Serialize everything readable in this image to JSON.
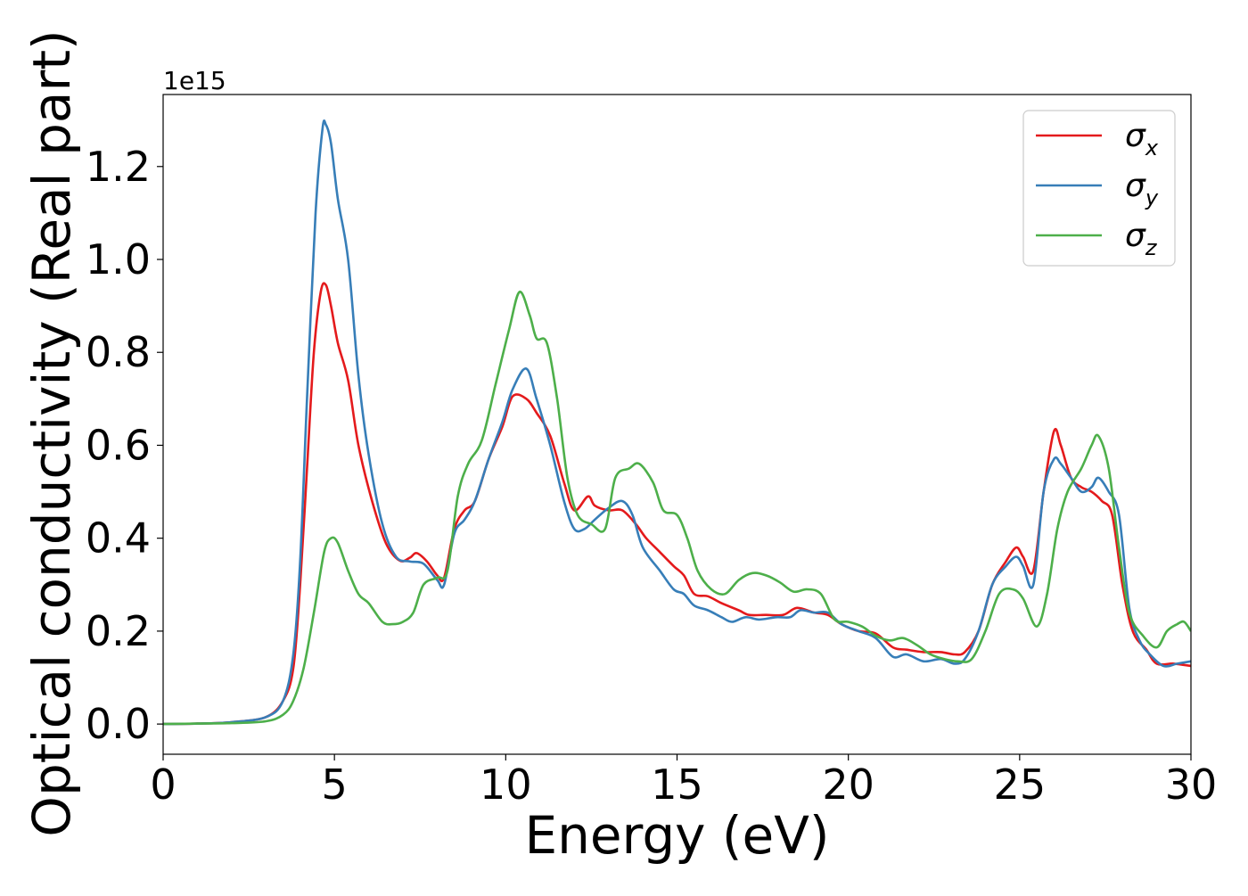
{
  "chart_data": {
    "type": "line",
    "title": "",
    "xlabel": "Energy (eV)",
    "ylabel": "Optical conductivity (Real part)",
    "y_offset_label": "1e15",
    "xlim": [
      0,
      30
    ],
    "ylim": [
      -0.065,
      1.355
    ],
    "x_ticks": [
      0,
      5,
      10,
      15,
      20,
      25,
      30
    ],
    "y_ticks": [
      0.0,
      0.2,
      0.4,
      0.6,
      0.8,
      1.0,
      1.2
    ],
    "x_tick_labels": [
      "0",
      "5",
      "10",
      "15",
      "20",
      "25",
      "30"
    ],
    "y_tick_labels": [
      "0.0",
      "0.2",
      "0.4",
      "0.6",
      "0.8",
      "1.0",
      "1.2"
    ],
    "grid": false,
    "legend_position": "top-right",
    "legend": {
      "sigma_symbol": "σ",
      "entries": [
        {
          "subscript": "x",
          "color": "#e41a1c"
        },
        {
          "subscript": "y",
          "color": "#377eb8"
        },
        {
          "subscript": "z",
          "color": "#4daf4a"
        }
      ]
    },
    "series": [
      {
        "color": "#e41a1c",
        "points": [
          [
            0,
            0
          ],
          [
            1,
            0.001
          ],
          [
            2,
            0.004
          ],
          [
            3,
            0.015
          ],
          [
            3.5,
            0.05
          ],
          [
            3.8,
            0.12
          ],
          [
            4,
            0.3
          ],
          [
            4.2,
            0.55
          ],
          [
            4.4,
            0.8
          ],
          [
            4.6,
            0.93
          ],
          [
            4.75,
            0.945
          ],
          [
            4.9,
            0.9
          ],
          [
            5.1,
            0.82
          ],
          [
            5.4,
            0.74
          ],
          [
            5.7,
            0.6
          ],
          [
            6.1,
            0.48
          ],
          [
            6.5,
            0.39
          ],
          [
            6.9,
            0.352
          ],
          [
            7.2,
            0.358
          ],
          [
            7.4,
            0.368
          ],
          [
            7.7,
            0.35
          ],
          [
            8.0,
            0.32
          ],
          [
            8.2,
            0.315
          ],
          [
            8.5,
            0.42
          ],
          [
            8.8,
            0.46
          ],
          [
            9.1,
            0.48
          ],
          [
            9.5,
            0.57
          ],
          [
            9.9,
            0.64
          ],
          [
            10.2,
            0.705
          ],
          [
            10.6,
            0.7
          ],
          [
            10.9,
            0.67
          ],
          [
            11.3,
            0.62
          ],
          [
            11.7,
            0.52
          ],
          [
            12.0,
            0.46
          ],
          [
            12.4,
            0.49
          ],
          [
            12.6,
            0.47
          ],
          [
            13.0,
            0.46
          ],
          [
            13.4,
            0.46
          ],
          [
            13.8,
            0.43
          ],
          [
            14.1,
            0.4
          ],
          [
            14.5,
            0.37
          ],
          [
            14.9,
            0.34
          ],
          [
            15.2,
            0.32
          ],
          [
            15.5,
            0.28
          ],
          [
            15.9,
            0.275
          ],
          [
            16.3,
            0.26
          ],
          [
            16.8,
            0.245
          ],
          [
            17.1,
            0.235
          ],
          [
            17.6,
            0.235
          ],
          [
            18.1,
            0.235
          ],
          [
            18.5,
            0.25
          ],
          [
            19.0,
            0.24
          ],
          [
            19.4,
            0.235
          ],
          [
            19.8,
            0.215
          ],
          [
            20.3,
            0.2
          ],
          [
            20.8,
            0.195
          ],
          [
            21.3,
            0.165
          ],
          [
            21.7,
            0.16
          ],
          [
            22.2,
            0.155
          ],
          [
            22.7,
            0.155
          ],
          [
            23.1,
            0.15
          ],
          [
            23.4,
            0.155
          ],
          [
            23.8,
            0.2
          ],
          [
            24.2,
            0.3
          ],
          [
            24.6,
            0.35
          ],
          [
            24.9,
            0.38
          ],
          [
            25.1,
            0.36
          ],
          [
            25.4,
            0.33
          ],
          [
            25.7,
            0.5
          ],
          [
            26.0,
            0.63
          ],
          [
            26.2,
            0.6
          ],
          [
            26.5,
            0.53
          ],
          [
            26.8,
            0.51
          ],
          [
            27.1,
            0.5
          ],
          [
            27.4,
            0.48
          ],
          [
            27.7,
            0.45
          ],
          [
            28.0,
            0.3
          ],
          [
            28.3,
            0.2
          ],
          [
            28.7,
            0.16
          ],
          [
            29.0,
            0.13
          ],
          [
            29.5,
            0.13
          ],
          [
            30,
            0.125
          ]
        ]
      },
      {
        "color": "#377eb8",
        "points": [
          [
            0,
            0
          ],
          [
            1,
            0.001
          ],
          [
            2,
            0.004
          ],
          [
            3,
            0.015
          ],
          [
            3.5,
            0.05
          ],
          [
            3.8,
            0.15
          ],
          [
            4,
            0.35
          ],
          [
            4.2,
            0.7
          ],
          [
            4.45,
            1.1
          ],
          [
            4.65,
            1.28
          ],
          [
            4.75,
            1.29
          ],
          [
            4.9,
            1.25
          ],
          [
            5.1,
            1.13
          ],
          [
            5.4,
            1.0
          ],
          [
            5.7,
            0.75
          ],
          [
            6.0,
            0.58
          ],
          [
            6.4,
            0.43
          ],
          [
            6.8,
            0.36
          ],
          [
            7.2,
            0.35
          ],
          [
            7.6,
            0.345
          ],
          [
            8.0,
            0.31
          ],
          [
            8.2,
            0.3
          ],
          [
            8.5,
            0.41
          ],
          [
            8.8,
            0.44
          ],
          [
            9.1,
            0.48
          ],
          [
            9.5,
            0.57
          ],
          [
            9.9,
            0.65
          ],
          [
            10.2,
            0.72
          ],
          [
            10.6,
            0.765
          ],
          [
            10.9,
            0.7
          ],
          [
            11.3,
            0.6
          ],
          [
            11.7,
            0.48
          ],
          [
            12.0,
            0.42
          ],
          [
            12.3,
            0.42
          ],
          [
            12.6,
            0.44
          ],
          [
            13.0,
            0.465
          ],
          [
            13.4,
            0.48
          ],
          [
            13.7,
            0.45
          ],
          [
            14.0,
            0.38
          ],
          [
            14.5,
            0.33
          ],
          [
            14.9,
            0.29
          ],
          [
            15.2,
            0.28
          ],
          [
            15.5,
            0.255
          ],
          [
            15.9,
            0.245
          ],
          [
            16.3,
            0.23
          ],
          [
            16.6,
            0.22
          ],
          [
            17.0,
            0.23
          ],
          [
            17.4,
            0.225
          ],
          [
            17.9,
            0.23
          ],
          [
            18.3,
            0.23
          ],
          [
            18.6,
            0.245
          ],
          [
            19.0,
            0.24
          ],
          [
            19.4,
            0.24
          ],
          [
            19.8,
            0.215
          ],
          [
            20.3,
            0.2
          ],
          [
            20.8,
            0.185
          ],
          [
            21.3,
            0.145
          ],
          [
            21.7,
            0.15
          ],
          [
            22.2,
            0.135
          ],
          [
            22.7,
            0.14
          ],
          [
            23.1,
            0.13
          ],
          [
            23.4,
            0.14
          ],
          [
            23.8,
            0.2
          ],
          [
            24.2,
            0.3
          ],
          [
            24.6,
            0.34
          ],
          [
            24.9,
            0.36
          ],
          [
            25.1,
            0.34
          ],
          [
            25.4,
            0.3
          ],
          [
            25.7,
            0.5
          ],
          [
            26.0,
            0.57
          ],
          [
            26.2,
            0.56
          ],
          [
            26.5,
            0.53
          ],
          [
            26.8,
            0.5
          ],
          [
            27.1,
            0.51
          ],
          [
            27.3,
            0.53
          ],
          [
            27.6,
            0.5
          ],
          [
            27.9,
            0.45
          ],
          [
            28.2,
            0.25
          ],
          [
            28.5,
            0.18
          ],
          [
            28.8,
            0.15
          ],
          [
            29.2,
            0.125
          ],
          [
            29.6,
            0.13
          ],
          [
            30,
            0.135
          ]
        ]
      },
      {
        "color": "#4daf4a",
        "points": [
          [
            0,
            0
          ],
          [
            1,
            0.001
          ],
          [
            2,
            0.002
          ],
          [
            3,
            0.006
          ],
          [
            3.5,
            0.02
          ],
          [
            3.8,
            0.05
          ],
          [
            4.1,
            0.12
          ],
          [
            4.4,
            0.24
          ],
          [
            4.7,
            0.37
          ],
          [
            4.9,
            0.4
          ],
          [
            5.1,
            0.39
          ],
          [
            5.4,
            0.33
          ],
          [
            5.7,
            0.28
          ],
          [
            6.0,
            0.26
          ],
          [
            6.4,
            0.22
          ],
          [
            6.7,
            0.215
          ],
          [
            7.0,
            0.22
          ],
          [
            7.3,
            0.24
          ],
          [
            7.6,
            0.3
          ],
          [
            8.0,
            0.315
          ],
          [
            8.3,
            0.33
          ],
          [
            8.6,
            0.49
          ],
          [
            8.9,
            0.56
          ],
          [
            9.3,
            0.61
          ],
          [
            9.7,
            0.73
          ],
          [
            10.1,
            0.85
          ],
          [
            10.4,
            0.93
          ],
          [
            10.7,
            0.88
          ],
          [
            10.9,
            0.83
          ],
          [
            11.2,
            0.82
          ],
          [
            11.5,
            0.7
          ],
          [
            11.8,
            0.53
          ],
          [
            12.1,
            0.45
          ],
          [
            12.5,
            0.43
          ],
          [
            12.9,
            0.42
          ],
          [
            13.2,
            0.53
          ],
          [
            13.6,
            0.55
          ],
          [
            13.9,
            0.56
          ],
          [
            14.3,
            0.52
          ],
          [
            14.6,
            0.46
          ],
          [
            15.0,
            0.45
          ],
          [
            15.3,
            0.4
          ],
          [
            15.6,
            0.33
          ],
          [
            16.0,
            0.29
          ],
          [
            16.4,
            0.28
          ],
          [
            16.8,
            0.31
          ],
          [
            17.2,
            0.325
          ],
          [
            17.6,
            0.32
          ],
          [
            18.0,
            0.305
          ],
          [
            18.4,
            0.285
          ],
          [
            18.8,
            0.29
          ],
          [
            19.2,
            0.28
          ],
          [
            19.6,
            0.225
          ],
          [
            20.0,
            0.22
          ],
          [
            20.4,
            0.21
          ],
          [
            20.8,
            0.19
          ],
          [
            21.2,
            0.18
          ],
          [
            21.6,
            0.185
          ],
          [
            22.0,
            0.17
          ],
          [
            22.4,
            0.15
          ],
          [
            22.8,
            0.14
          ],
          [
            23.2,
            0.135
          ],
          [
            23.6,
            0.14
          ],
          [
            24.0,
            0.2
          ],
          [
            24.4,
            0.28
          ],
          [
            24.8,
            0.29
          ],
          [
            25.1,
            0.27
          ],
          [
            25.5,
            0.21
          ],
          [
            25.8,
            0.28
          ],
          [
            26.1,
            0.42
          ],
          [
            26.4,
            0.5
          ],
          [
            26.8,
            0.55
          ],
          [
            27.1,
            0.6
          ],
          [
            27.3,
            0.62
          ],
          [
            27.6,
            0.55
          ],
          [
            27.9,
            0.38
          ],
          [
            28.2,
            0.24
          ],
          [
            28.6,
            0.19
          ],
          [
            29.0,
            0.165
          ],
          [
            29.3,
            0.2
          ],
          [
            29.6,
            0.215
          ],
          [
            29.8,
            0.22
          ],
          [
            30,
            0.2
          ]
        ]
      }
    ]
  }
}
